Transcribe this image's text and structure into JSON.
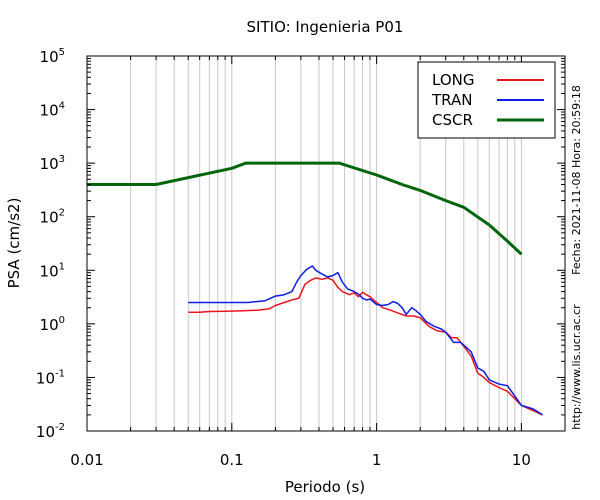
{
  "chart_data": {
    "type": "line",
    "title": "SITIO: Ingenieria P01",
    "xlabel": "Periodo (s)",
    "ylabel": "PSA (cm/s2)",
    "x_scale": "log",
    "y_scale": "log",
    "xlim": [
      0.01,
      20
    ],
    "ylim": [
      0.01,
      100000
    ],
    "x_ticks": [
      "0.01",
      "0.1",
      "1",
      "10"
    ],
    "y_ticks": [
      {
        "base": "10",
        "exp": "-2"
      },
      {
        "base": "10",
        "exp": "-1"
      },
      {
        "base": "10",
        "exp": "0"
      },
      {
        "base": "10",
        "exp": "1"
      },
      {
        "base": "10",
        "exp": "2"
      },
      {
        "base": "10",
        "exp": "3"
      },
      {
        "base": "10",
        "exp": "4"
      },
      {
        "base": "10",
        "exp": "5"
      }
    ],
    "grid": "vertical-minor",
    "legend_position": "top-right",
    "series": [
      {
        "name": "LONG",
        "color": "#e8141e",
        "points": [
          [
            0.05,
            1.65
          ],
          [
            0.06,
            1.65
          ],
          [
            0.07,
            1.7
          ],
          [
            0.09,
            1.72
          ],
          [
            0.12,
            1.75
          ],
          [
            0.15,
            1.8
          ],
          [
            0.18,
            1.9
          ],
          [
            0.2,
            2.2
          ],
          [
            0.23,
            2.5
          ],
          [
            0.26,
            2.8
          ],
          [
            0.29,
            3.0
          ],
          [
            0.32,
            5.5
          ],
          [
            0.35,
            6.5
          ],
          [
            0.38,
            7.2
          ],
          [
            0.42,
            6.8
          ],
          [
            0.46,
            7.2
          ],
          [
            0.5,
            6.5
          ],
          [
            0.54,
            4.8
          ],
          [
            0.58,
            4.0
          ],
          [
            0.65,
            3.5
          ],
          [
            0.7,
            3.8
          ],
          [
            0.75,
            3.2
          ],
          [
            0.8,
            3.9
          ],
          [
            0.85,
            3.5
          ],
          [
            0.9,
            3.2
          ],
          [
            1.0,
            2.5
          ],
          [
            1.1,
            2.0
          ],
          [
            1.25,
            1.8
          ],
          [
            1.4,
            1.6
          ],
          [
            1.6,
            1.4
          ],
          [
            1.8,
            1.4
          ],
          [
            2.0,
            1.3
          ],
          [
            2.3,
            0.9
          ],
          [
            2.6,
            0.75
          ],
          [
            3.0,
            0.7
          ],
          [
            3.3,
            0.55
          ],
          [
            3.6,
            0.55
          ],
          [
            4.0,
            0.38
          ],
          [
            4.5,
            0.25
          ],
          [
            5.0,
            0.12
          ],
          [
            5.5,
            0.1
          ],
          [
            6.0,
            0.08
          ],
          [
            7.0,
            0.065
          ],
          [
            8.0,
            0.055
          ],
          [
            9.0,
            0.04
          ],
          [
            10.0,
            0.03
          ],
          [
            12.0,
            0.024
          ],
          [
            14.0,
            0.02
          ]
        ]
      },
      {
        "name": "TRAN",
        "color": "#0a1ee6",
        "points": [
          [
            0.05,
            2.5
          ],
          [
            0.06,
            2.5
          ],
          [
            0.08,
            2.5
          ],
          [
            0.1,
            2.5
          ],
          [
            0.13,
            2.5
          ],
          [
            0.17,
            2.7
          ],
          [
            0.2,
            3.3
          ],
          [
            0.23,
            3.5
          ],
          [
            0.26,
            4.0
          ],
          [
            0.28,
            6.0
          ],
          [
            0.3,
            8.0
          ],
          [
            0.33,
            10.5
          ],
          [
            0.36,
            12.0
          ],
          [
            0.38,
            10.0
          ],
          [
            0.42,
            8.5
          ],
          [
            0.46,
            7.5
          ],
          [
            0.5,
            8.0
          ],
          [
            0.54,
            9.0
          ],
          [
            0.58,
            6.0
          ],
          [
            0.63,
            4.5
          ],
          [
            0.7,
            4.0
          ],
          [
            0.75,
            3.6
          ],
          [
            0.8,
            3.0
          ],
          [
            0.85,
            2.8
          ],
          [
            0.9,
            2.9
          ],
          [
            1.0,
            2.3
          ],
          [
            1.1,
            2.2
          ],
          [
            1.2,
            2.3
          ],
          [
            1.3,
            2.6
          ],
          [
            1.4,
            2.4
          ],
          [
            1.5,
            2.0
          ],
          [
            1.6,
            1.5
          ],
          [
            1.75,
            2.0
          ],
          [
            1.85,
            1.8
          ],
          [
            2.0,
            1.5
          ],
          [
            2.2,
            1.1
          ],
          [
            2.5,
            0.9
          ],
          [
            2.8,
            0.8
          ],
          [
            3.0,
            0.7
          ],
          [
            3.4,
            0.45
          ],
          [
            3.8,
            0.45
          ],
          [
            4.0,
            0.4
          ],
          [
            4.5,
            0.3
          ],
          [
            5.0,
            0.15
          ],
          [
            5.5,
            0.13
          ],
          [
            6.0,
            0.09
          ],
          [
            7.0,
            0.075
          ],
          [
            8.0,
            0.07
          ],
          [
            9.0,
            0.045
          ],
          [
            10.0,
            0.03
          ],
          [
            12.0,
            0.026
          ],
          [
            14.0,
            0.02
          ]
        ]
      },
      {
        "name": "CSCR",
        "color": "#00660a",
        "points": [
          [
            0.01,
            400
          ],
          [
            0.03,
            400
          ],
          [
            0.1,
            800
          ],
          [
            0.125,
            1000
          ],
          [
            0.55,
            1000
          ],
          [
            1,
            600
          ],
          [
            1.5,
            400
          ],
          [
            2,
            310
          ],
          [
            3,
            200
          ],
          [
            4,
            150
          ],
          [
            6,
            70
          ],
          [
            8,
            35
          ],
          [
            10,
            20
          ]
        ]
      }
    ]
  },
  "side_annotations": {
    "timestamp": "Fecha: 2021-11-08 Hora: 20:59:18",
    "url": "http://www.lis.ucr.ac.cr"
  }
}
